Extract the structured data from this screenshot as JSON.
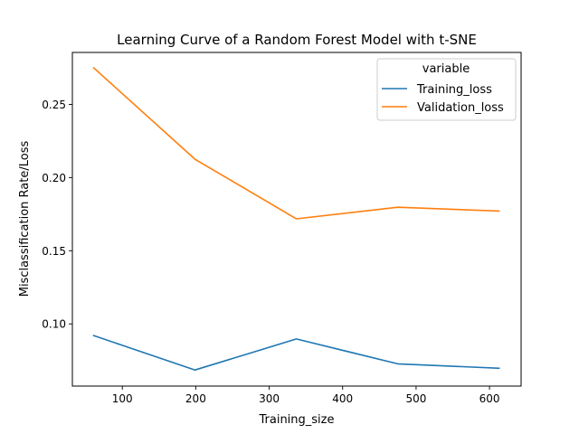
{
  "chart_data": {
    "type": "line",
    "title": "Learning Curve of a Random Forest Model with t-SNE",
    "xlabel": "Training_size",
    "ylabel": "Misclassification Rate/Loss",
    "xlim": [
      32,
      643
    ],
    "ylim": [
      0.0575,
      0.2855
    ],
    "xticks": [
      100,
      200,
      300,
      400,
      500,
      600
    ],
    "yticks": [
      0.1,
      0.15,
      0.2,
      0.25
    ],
    "xtick_labels": [
      "100",
      "200",
      "300",
      "400",
      "500",
      "600"
    ],
    "ytick_labels": [
      "0.10",
      "0.15",
      "0.20",
      "0.25"
    ],
    "grid": false,
    "legend": {
      "title": "variable",
      "position": "top-right"
    },
    "x": [
      61,
      199,
      337,
      475,
      613
    ],
    "series": [
      {
        "name": "Training_loss",
        "color": "#1f77b4",
        "values": [
          0.092,
          0.0685,
          0.0897,
          0.0727,
          0.0697
        ]
      },
      {
        "name": "Validation_loss",
        "color": "#ff7f0e",
        "values": [
          0.275,
          0.2125,
          0.1718,
          0.1797,
          0.1771
        ]
      }
    ]
  }
}
